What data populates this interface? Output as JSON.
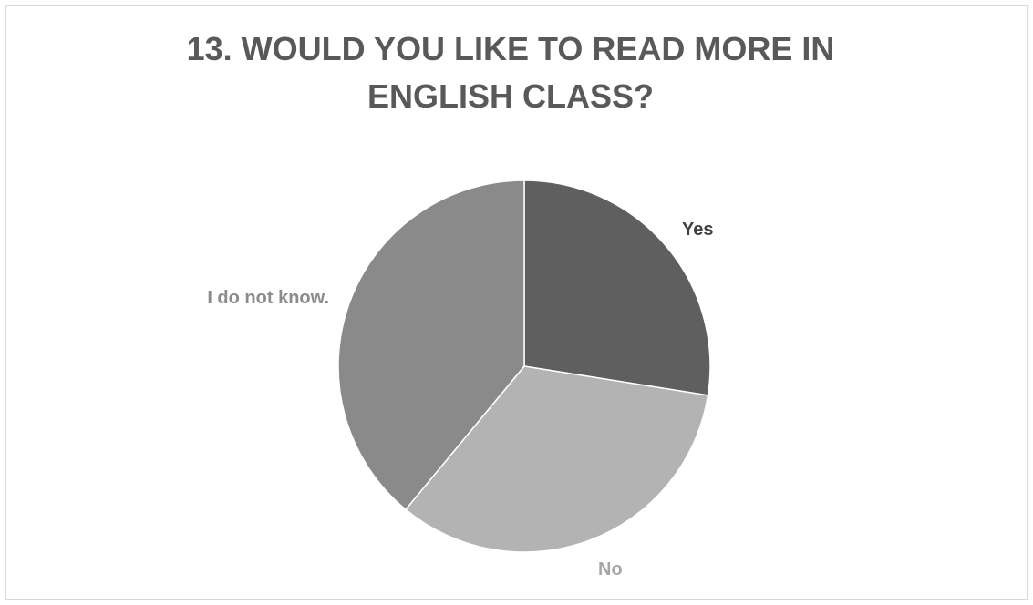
{
  "chart_data": {
    "type": "pie",
    "title": "13. WOULD YOU LIKE TO READ MORE IN ENGLISH CLASS?",
    "categories": [
      "Yes",
      "No",
      "I do not know."
    ],
    "values": [
      27.5,
      33.5,
      39.0
    ],
    "colors": [
      "#5f5f5f",
      "#b3b3b3",
      "#8a8a8a"
    ],
    "label_colors": [
      "#404040",
      "#a6a6a6",
      "#8c8c8c"
    ],
    "start_angle_deg": 0,
    "direction": "clockwise",
    "legend": "none"
  }
}
